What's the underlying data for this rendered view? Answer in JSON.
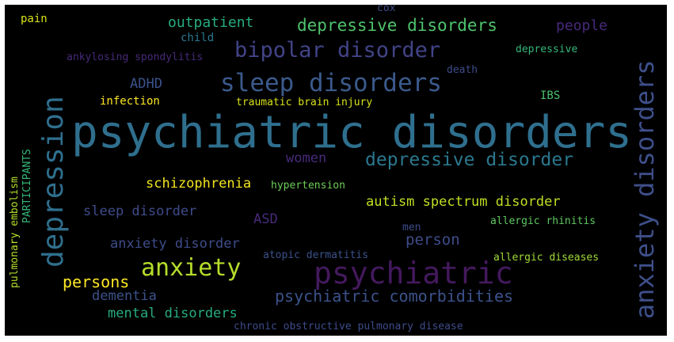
{
  "words": [
    {
      "text": "psychiatric disorders",
      "color": "#2f6f8e"
    },
    {
      "text": "anxiety disorders",
      "color": "#3e4f8a"
    },
    {
      "text": "depression",
      "color": "#2f6f8e"
    },
    {
      "text": "psychiatric",
      "color": "#44195e"
    },
    {
      "text": "sleep disorders",
      "color": "#3b5a8c"
    },
    {
      "text": "bipolar disorder",
      "color": "#414487"
    },
    {
      "text": "anxiety",
      "color": "#b5de2b"
    },
    {
      "text": "depressive disorders",
      "color": "#4ec36b"
    },
    {
      "text": "depressive disorder",
      "color": "#2a788e"
    },
    {
      "text": "psychiatric comorbidities",
      "color": "#3b528b"
    },
    {
      "text": "autism spectrum disorder",
      "color": "#c2df23"
    },
    {
      "text": "persons",
      "color": "#fde725"
    },
    {
      "text": "schizophrenia",
      "color": "#f1e51d"
    },
    {
      "text": "person",
      "color": "#3e4c8a"
    },
    {
      "text": "outpatient",
      "color": "#27ad81"
    },
    {
      "text": "anxiety disorder",
      "color": "#3e4c8a"
    },
    {
      "text": "sleep disorder",
      "color": "#3e4c8a"
    },
    {
      "text": "mental disorders",
      "color": "#27ad81"
    },
    {
      "text": "people",
      "color": "#472a7a"
    },
    {
      "text": "dementia",
      "color": "#3b528b"
    },
    {
      "text": "women",
      "color": "#472a7a"
    },
    {
      "text": "ADHD",
      "color": "#3b528b"
    },
    {
      "text": "ASD",
      "color": "#472a7a"
    },
    {
      "text": "traumatic brain injury",
      "color": "#d8e219"
    },
    {
      "text": "infection",
      "color": "#fde725"
    },
    {
      "text": "ankylosing spondylitis",
      "color": "#472a7a"
    },
    {
      "text": "chronic obstructive pulmonary disease",
      "color": "#3e4c8a"
    },
    {
      "text": "atopic dermatitis",
      "color": "#3b528b"
    },
    {
      "text": "allergic rhinitis",
      "color": "#5ec962"
    },
    {
      "text": "allergic diseases",
      "color": "#a0da39"
    },
    {
      "text": "hypertension",
      "color": "#6ece58"
    },
    {
      "text": "depressive",
      "color": "#35b779"
    },
    {
      "text": "child",
      "color": "#2a788e"
    },
    {
      "text": "IBS",
      "color": "#4ac16d"
    },
    {
      "text": "death",
      "color": "#3e4c8a"
    },
    {
      "text": "men",
      "color": "#3e4c8a"
    },
    {
      "text": "cox",
      "color": "#3e4c8a"
    },
    {
      "text": "pain",
      "color": "#d8e219"
    },
    {
      "text": "pulmonary embolism",
      "color": "#b5de2b"
    },
    {
      "text": "PARTICIPANTS",
      "color": "#35b779"
    }
  ]
}
